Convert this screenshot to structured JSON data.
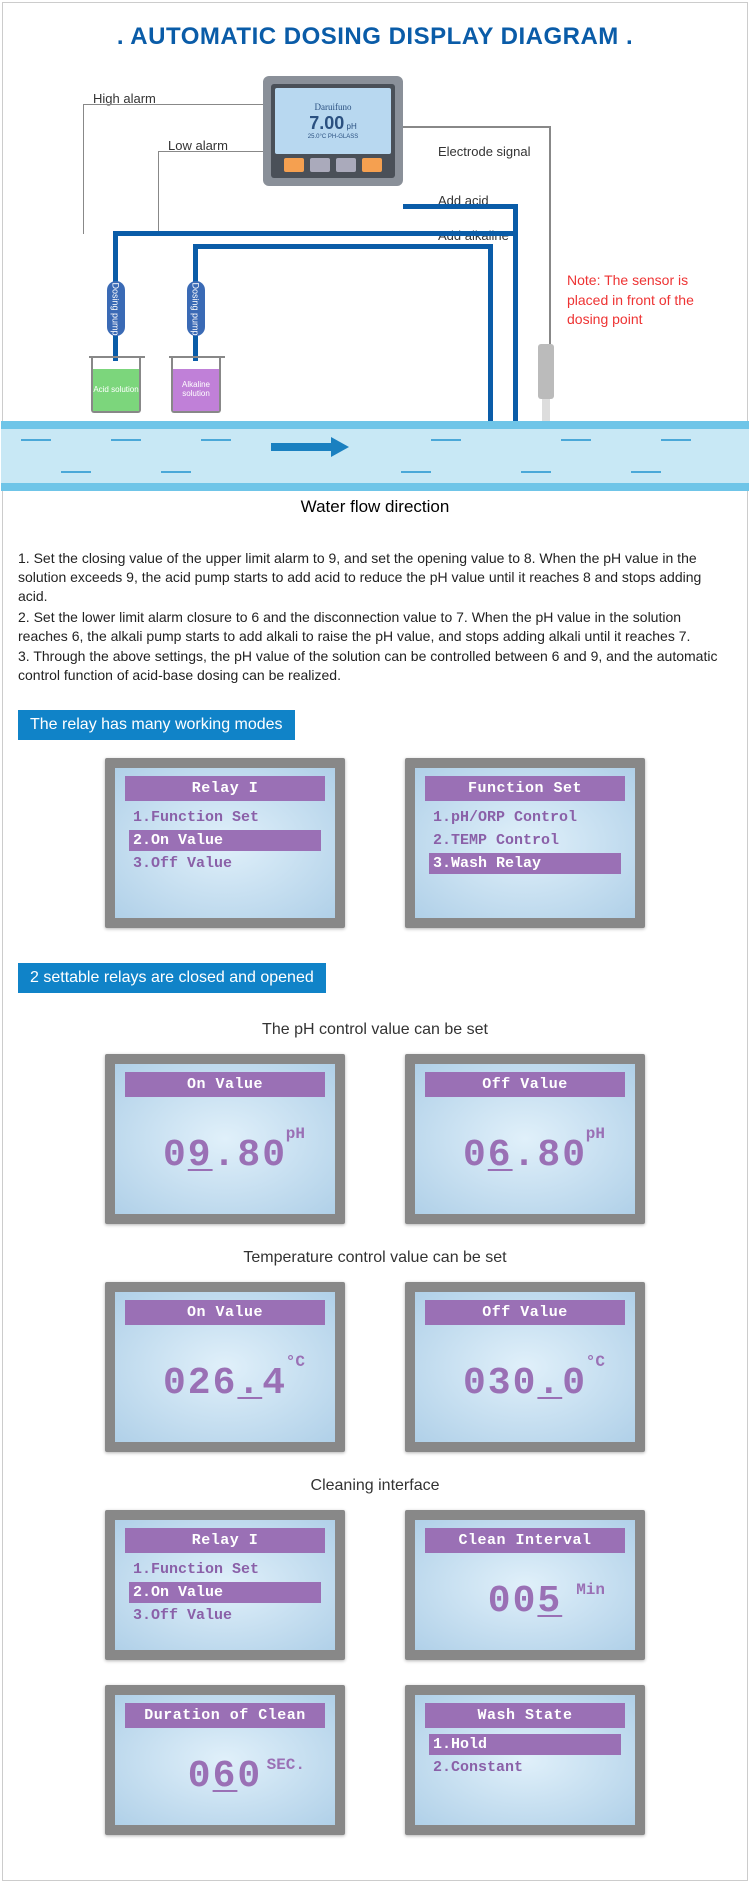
{
  "title": ". AUTOMATIC DOSING DISPLAY DIAGRAM .",
  "colors": {
    "brand": "#0a5ca8",
    "section_bar": "#1083c8",
    "water_band": "#6fc5e8",
    "water_inner": "#c8e8f5",
    "water_arrow": "#1a80c0",
    "note_red": "#e33",
    "lcd_header": "#9a70b5",
    "lcd_text": "#8a60a8",
    "acid_fill": "#7cd67c",
    "alkaline_fill": "#c080d8",
    "pump_blue": "#3a6ab5"
  },
  "diagram": {
    "labels": {
      "high_alarm": "High alarm",
      "low_alarm": "Low alarm",
      "electrode_signal": "Electrode signal",
      "add_acid": "Add acid",
      "add_alkaline": "Add alkaline",
      "water_flow": "Water flow direction",
      "note": "Note: The sensor is placed in front of the dosing point",
      "pump1": "Dosing pump",
      "pump2": "Dosing pump",
      "beaker1": "Acid solution",
      "beaker2": "Alkaline solution"
    },
    "controller": {
      "brand": "Daruifuno",
      "reading": "7.00",
      "unit": "pH",
      "bottom": "25.0°C   PH-GLASS"
    }
  },
  "instructions": [
    "1. Set the closing value of the upper limit alarm to 9, and set the opening value to 8. When the pH value in the solution exceeds 9, the acid pump starts to add acid to reduce the pH value until it reaches 8 and stops adding acid.",
    "2. Set the lower limit alarm closure to 6 and the disconnection value to 7. When the pH value in the solution reaches 6, the alkali pump starts to add alkali to raise the pH value, and stops adding alkali until it reaches 7.",
    "3. Through the above settings, the pH value of the solution can be controlled between 6 and 9, and the automatic control function of acid-base dosing can be realized."
  ],
  "section1_title": "The relay has many working modes",
  "screens_modes": [
    {
      "header": "Relay I",
      "items": [
        "1.Function Set",
        "2.On Value",
        "3.Off Value"
      ],
      "selected": 1
    },
    {
      "header": "Function Set",
      "items": [
        "1.pH/ORP Control",
        "2.TEMP Control",
        "3.Wash Relay"
      ],
      "selected": 2
    }
  ],
  "section2_title": "2 settable relays are closed and opened",
  "sub_ph": "The pH control value can be set",
  "screens_ph": [
    {
      "header": "On Value",
      "value": "09.80",
      "unit": "pH",
      "underline_at": 1
    },
    {
      "header": "Off Value",
      "value": "06.80",
      "unit": "pH",
      "underline_at": 1
    }
  ],
  "sub_temp": "Temperature control value can be set",
  "screens_temp": [
    {
      "header": "On Value",
      "value": "026.4",
      "unit": "°C",
      "underline_at": 3
    },
    {
      "header": "Off Value",
      "value": "030.0",
      "unit": "°C",
      "underline_at": 3
    }
  ],
  "sub_clean": "Cleaning interface",
  "screens_clean_top": [
    {
      "type": "menu",
      "header": "Relay I",
      "items": [
        "1.Function Set",
        "2.On Value",
        "3.Off Value"
      ],
      "selected": 1
    },
    {
      "type": "value",
      "header": "Clean Interval",
      "value": "005",
      "unit": "Min",
      "underline_at": 2
    }
  ],
  "screens_clean_bot": [
    {
      "type": "value",
      "header": "Duration of Clean",
      "value": "060",
      "unit": "SEC.",
      "underline_at": 1
    },
    {
      "type": "menu",
      "header": "Wash State",
      "items": [
        "1.Hold",
        "2.Constant"
      ],
      "selected": 0
    }
  ]
}
